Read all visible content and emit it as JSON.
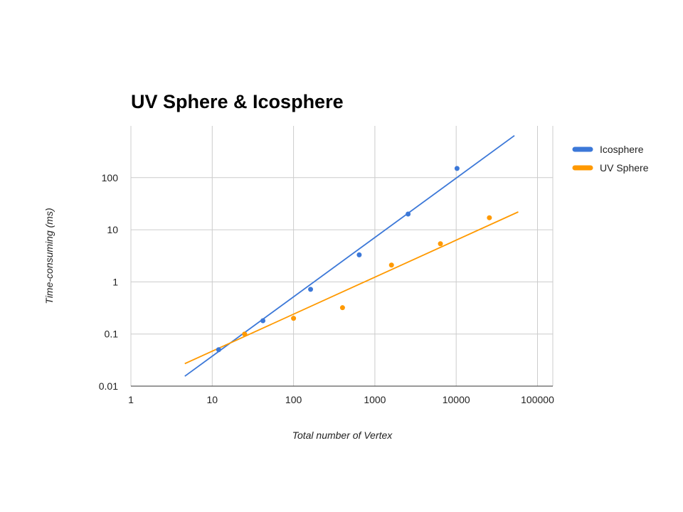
{
  "chart_data": {
    "type": "scatter",
    "title": "UV Sphere & Icosphere",
    "xlabel": "Total number of Vertex",
    "ylabel": "Time-consuming (ms)",
    "x_scale": "log",
    "y_scale": "log",
    "xlim": [
      1,
      200000
    ],
    "ylim": [
      0.01,
      1000
    ],
    "x_ticks": [
      "1",
      "10",
      "100",
      "1000",
      "10000",
      "100000"
    ],
    "y_ticks": [
      "0.01",
      "0.1",
      "1",
      "10",
      "100"
    ],
    "grid": true,
    "legend": "right",
    "series": [
      {
        "name": "Icosphere",
        "color": "#3c78d8",
        "points": [
          [
            12,
            0.05
          ],
          [
            42,
            0.18
          ],
          [
            162,
            0.72
          ],
          [
            642,
            3.3
          ],
          [
            2562,
            20
          ],
          [
            10242,
            150
          ]
        ],
        "trendline": {
          "x_start": 4.6,
          "y_start": 0.0155,
          "x_end": 52000,
          "y_end": 640
        }
      },
      {
        "name": "UV Sphere",
        "color": "#ff9900",
        "points": [
          [
            25,
            0.1
          ],
          [
            100,
            0.2
          ],
          [
            400,
            0.32
          ],
          [
            1600,
            2.1
          ],
          [
            6400,
            5.4
          ],
          [
            25600,
            17
          ]
        ],
        "trendline": {
          "x_start": 4.6,
          "y_start": 0.027,
          "x_end": 58000,
          "y_end": 22
        }
      }
    ]
  }
}
